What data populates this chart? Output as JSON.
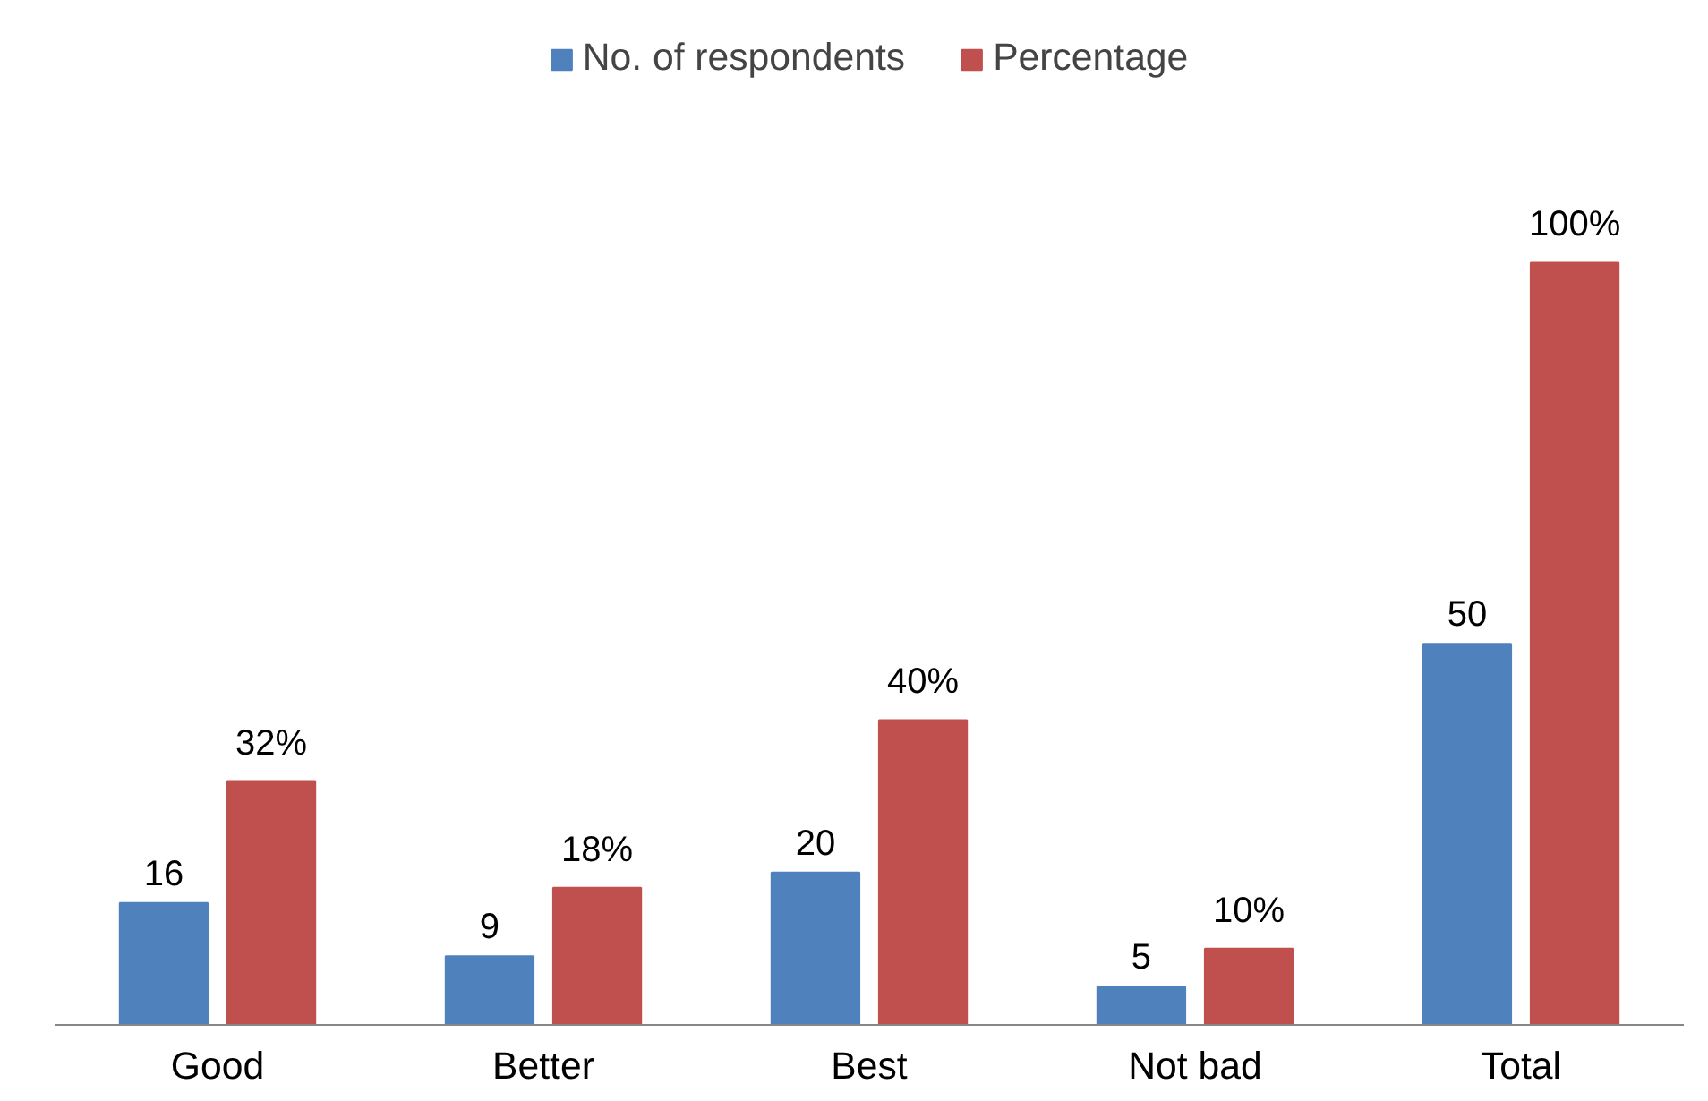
{
  "chart_data": {
    "type": "bar",
    "categories": [
      "Good",
      "Better",
      "Best",
      "Not bad",
      "Total"
    ],
    "series": [
      {
        "name": "No. of respondents",
        "color": "#4f81bd",
        "values": [
          16,
          9,
          20,
          5,
          50
        ],
        "value_labels": [
          "16",
          "9",
          "20",
          "5",
          "50"
        ]
      },
      {
        "name": "Percentage",
        "color": "#c0504d",
        "values": [
          32,
          18,
          40,
          10,
          100
        ],
        "value_labels": [
          "32%",
          "18%",
          "40%",
          "10%",
          "100%"
        ]
      }
    ],
    "tick_labels": "x",
    "grid": false,
    "legend": "top"
  }
}
